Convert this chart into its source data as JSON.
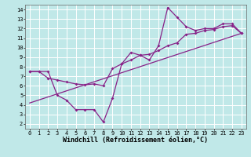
{
  "xlabel": "Windchill (Refroidissement éolien,°C)",
  "bg_color": "#c0e8e8",
  "line_color": "#882288",
  "grid_color": "#ffffff",
  "xlim": [
    -0.5,
    23.5
  ],
  "ylim": [
    1.5,
    14.5
  ],
  "xticks": [
    0,
    1,
    2,
    3,
    4,
    5,
    6,
    7,
    8,
    9,
    10,
    11,
    12,
    13,
    14,
    15,
    16,
    17,
    18,
    19,
    20,
    21,
    22,
    23
  ],
  "yticks": [
    2,
    3,
    4,
    5,
    6,
    7,
    8,
    9,
    10,
    11,
    12,
    13,
    14
  ],
  "series1_x": [
    0,
    1,
    2,
    3,
    4,
    5,
    6,
    7,
    8,
    9,
    10,
    11,
    12,
    13,
    14,
    15,
    16,
    17,
    18,
    19,
    20,
    21,
    22,
    23
  ],
  "series1_y": [
    7.5,
    7.5,
    7.5,
    5.0,
    4.5,
    3.5,
    3.5,
    3.5,
    2.2,
    4.7,
    8.3,
    9.5,
    9.2,
    8.7,
    10.2,
    14.2,
    13.2,
    12.2,
    11.8,
    12.0,
    12.0,
    12.5,
    12.5,
    11.5
  ],
  "series2_x": [
    0,
    1,
    2,
    3,
    4,
    5,
    6,
    7,
    8,
    9,
    10,
    11,
    12,
    13,
    14,
    15,
    16,
    17,
    18,
    19,
    20,
    21,
    22,
    23
  ],
  "series2_y": [
    7.5,
    7.5,
    6.8,
    6.6,
    6.4,
    6.2,
    6.1,
    6.2,
    6.0,
    7.8,
    8.3,
    8.7,
    9.2,
    9.3,
    9.7,
    10.2,
    10.5,
    11.4,
    11.5,
    11.8,
    11.9,
    12.2,
    12.3,
    11.5
  ],
  "series3_x": [
    0,
    23
  ],
  "series3_y": [
    4.2,
    11.5
  ],
  "xlabel_fontsize": 6,
  "tick_fontsize": 5
}
